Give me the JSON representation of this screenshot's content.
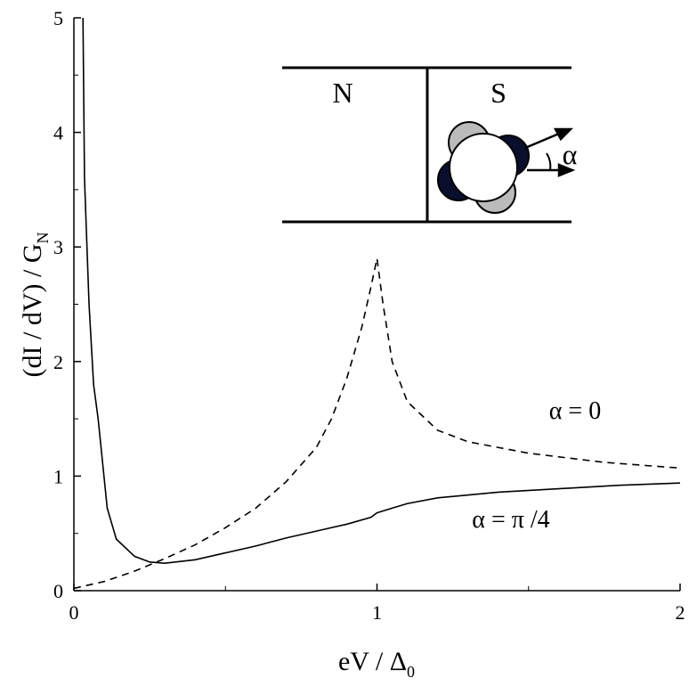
{
  "chart_data": {
    "type": "line",
    "xlabel": {
      "text": "eV / Δ",
      "subscript": "0"
    },
    "ylabel": {
      "text": "(dI / dV) / G",
      "subscript": "N"
    },
    "xlim": [
      0,
      2
    ],
    "xticks": [
      0,
      1,
      2
    ],
    "ylim": [
      0,
      5
    ],
    "yticks": [
      0,
      1,
      2,
      3,
      4,
      5
    ],
    "series": [
      {
        "name": "α = 0",
        "color": "#000000",
        "dash": true,
        "x": [
          0,
          0.1,
          0.2,
          0.3,
          0.4,
          0.5,
          0.6,
          0.7,
          0.8,
          0.85,
          0.9,
          0.95,
          0.98,
          1.0,
          1.02,
          1.05,
          1.1,
          1.2,
          1.3,
          1.5,
          1.75,
          2.0
        ],
        "values": [
          0.02,
          0.08,
          0.17,
          0.28,
          0.4,
          0.55,
          0.72,
          0.95,
          1.25,
          1.5,
          1.85,
          2.3,
          2.65,
          2.9,
          2.5,
          2.0,
          1.65,
          1.4,
          1.3,
          1.2,
          1.12,
          1.07
        ]
      },
      {
        "name": "α = π /4",
        "color": "#000000",
        "dash": false,
        "x": [
          0.03,
          0.035,
          0.05,
          0.065,
          0.08,
          0.11,
          0.14,
          0.2,
          0.25,
          0.3,
          0.4,
          0.5,
          0.6,
          0.7,
          0.8,
          0.9,
          0.98,
          1.0,
          1.05,
          1.1,
          1.2,
          1.4,
          1.6,
          1.8,
          2.0
        ],
        "values": [
          5,
          3.6,
          2.5,
          1.8,
          1.5,
          0.72,
          0.45,
          0.3,
          0.25,
          0.24,
          0.27,
          0.33,
          0.39,
          0.46,
          0.52,
          0.58,
          0.64,
          0.68,
          0.72,
          0.76,
          0.81,
          0.86,
          0.89,
          0.92,
          0.94
        ]
      }
    ],
    "inset": {
      "left": "N",
      "right": "S",
      "angle": "α"
    }
  }
}
